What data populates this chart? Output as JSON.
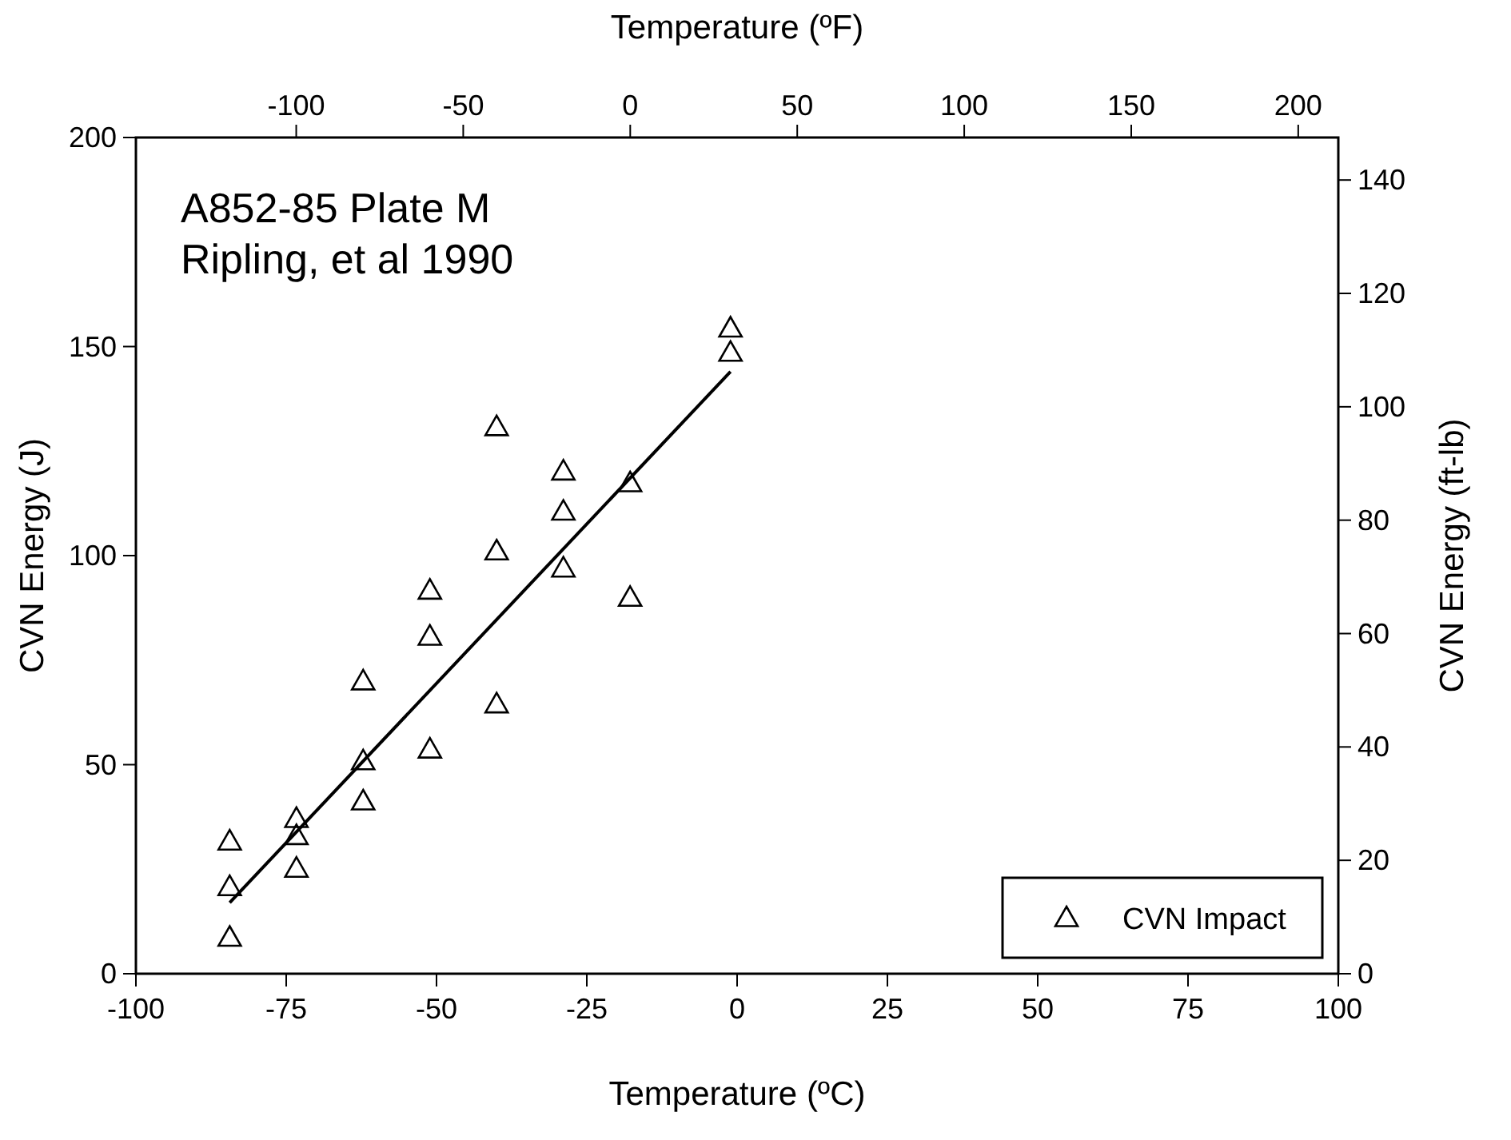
{
  "chart_data": {
    "type": "scatter",
    "xlabel": "Temperature (ºC)",
    "ylabel": "CVN Energy (J)",
    "x2label": "Temperature (ºF)",
    "y2label": "CVN Energy (ft-lb)",
    "xlim": [
      -100,
      100
    ],
    "xticks": [
      -100,
      -75,
      -50,
      -25,
      0,
      25,
      50,
      75,
      100
    ],
    "ylim": [
      0,
      200
    ],
    "yticks": [
      0,
      50,
      100,
      150,
      200
    ],
    "x2lim": [
      -148,
      212
    ],
    "x2ticks": [
      -100,
      -50,
      0,
      50,
      100,
      150,
      200
    ],
    "y2lim": [
      0,
      147.5
    ],
    "y2ticks": [
      0,
      20,
      40,
      60,
      80,
      100,
      120,
      140
    ],
    "grid": false,
    "legend": "bottom right",
    "annotations": [
      "A852-85 Plate M",
      "Ripling, et al 1990"
    ],
    "series": [
      {
        "name": "CVN Impact",
        "color": "#000000",
        "marker": "triangle",
        "x": [
          -84.4,
          -84.4,
          -84.4,
          -73.3,
          -73.3,
          -73.3,
          -62.2,
          -62.2,
          -62.2,
          -51.1,
          -51.1,
          -51.1,
          -40,
          -40,
          -40,
          -28.9,
          -28.9,
          -28.9,
          -17.8,
          -17.8,
          -1.1,
          -1.1
        ],
        "values": [
          31.7,
          20.8,
          8.7,
          37.1,
          33,
          25.2,
          70,
          50.9,
          41.3,
          91.7,
          80.7,
          53.7,
          130.8,
          101.1,
          64.5,
          120.2,
          110.6,
          97,
          117.4,
          90,
          154.4,
          148.6
        ]
      },
      {
        "type": "line",
        "color": "#000000",
        "marker": "none",
        "x": [
          -84.4,
          -1.1
        ],
        "values": [
          17,
          144
        ]
      }
    ]
  }
}
